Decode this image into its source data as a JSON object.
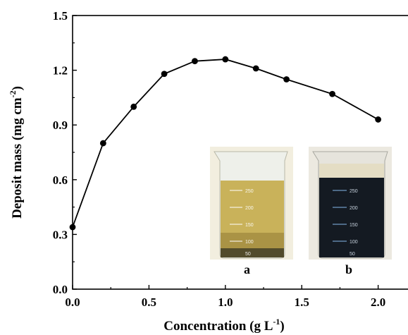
{
  "chart_data": {
    "type": "line",
    "xlabel_main": "Concentration (g L",
    "xlabel_sup": "-1",
    "xlabel_end": ")",
    "ylabel_main": "Deposit mass (mg cm",
    "ylabel_sup": "-2",
    "ylabel_end": ")",
    "xlim": [
      0.0,
      2.2
    ],
    "ylim": [
      0.0,
      1.5
    ],
    "xticks": [
      "0.0",
      "0.5",
      "1.0",
      "1.5",
      "2.0"
    ],
    "yticks": [
      "0.0",
      "0.3",
      "0.6",
      "0.9",
      "1.2",
      "1.5"
    ],
    "series": [
      {
        "x": [
          0.0,
          0.2,
          0.4,
          0.6,
          0.8,
          1.0,
          1.2,
          1.4,
          1.7,
          2.0
        ],
        "y": [
          0.34,
          0.8,
          1.0,
          1.18,
          1.25,
          1.26,
          1.21,
          1.15,
          1.07,
          0.93
        ]
      }
    ],
    "marker": "filled-circle",
    "line_color": "#000000",
    "grid": false
  },
  "inset_photos": {
    "labels": [
      "a",
      "b"
    ],
    "beaker_a_color": "#c9b25a",
    "beaker_b_color": "#141a22",
    "beaker_a_scale": [
      "250",
      "200",
      "150",
      "100",
      "50"
    ],
    "beaker_b_scale": [
      "250",
      "200",
      "150",
      "100",
      "50"
    ]
  }
}
